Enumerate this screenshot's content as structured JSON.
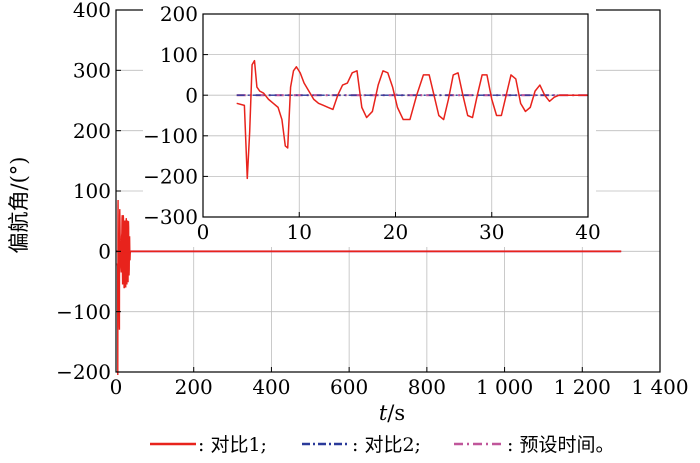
{
  "chart_data": {
    "type": "line",
    "ylabel": "偏航角/(°)",
    "xlabel_italic": "t",
    "xlabel_unit": "/s",
    "grid": true,
    "legend_position": "bottom",
    "colors": {
      "series1": "#e8231c",
      "series2": "#2a3a9a",
      "series3": "#c0569a",
      "axis": "#000000",
      "grid": "#bdbdbd"
    },
    "main": {
      "xlim": [
        0,
        1400
      ],
      "ylim": [
        -200,
        400
      ],
      "xticks": [
        0,
        200,
        400,
        600,
        800,
        1000,
        1200,
        1400
      ],
      "xtick_labels": [
        "0",
        "200",
        "400",
        "600",
        "800",
        "1 000",
        "1 200",
        "1 400"
      ],
      "yticks": [
        -200,
        -100,
        0,
        100,
        200,
        300,
        400
      ],
      "ytick_labels": [
        "−200",
        "−100",
        "0",
        "100",
        "200",
        "300",
        "400"
      ]
    },
    "inset": {
      "xlim": [
        0,
        40
      ],
      "ylim": [
        -300,
        200
      ],
      "xticks": [
        0,
        10,
        20,
        30,
        40
      ],
      "xtick_labels": [
        "0",
        "10",
        "20",
        "30",
        "40"
      ],
      "yticks": [
        -300,
        -200,
        -100,
        0,
        100,
        200
      ],
      "ytick_labels": [
        "−300",
        "−200",
        "−100",
        "0",
        "100",
        "200"
      ]
    },
    "series": [
      {
        "name": "对比1",
        "style": "solid",
        "x": [
          3.5,
          4.3,
          4.6,
          4.85,
          5.1,
          5.35,
          5.6,
          5.9,
          6.3,
          6.8,
          7.3,
          7.8,
          8.2,
          8.55,
          8.8,
          9.1,
          9.4,
          9.7,
          10.1,
          10.5,
          11.0,
          11.5,
          12.0,
          12.5,
          13.0,
          13.5,
          14.0,
          14.5,
          15.0,
          15.5,
          16.0,
          16.5,
          17.0,
          17.6,
          18.2,
          18.7,
          19.2,
          19.7,
          20.2,
          20.8,
          21.5,
          22.2,
          22.9,
          23.5,
          24.0,
          24.5,
          25.0,
          25.5,
          26.0,
          26.5,
          27.0,
          27.5,
          28.0,
          28.5,
          29.0,
          29.5,
          30.0,
          30.5,
          31.0,
          31.5,
          32.0,
          32.5,
          33.0,
          33.5,
          34.0,
          34.5,
          35.0,
          35.5,
          36.0,
          36.5,
          37.0,
          38.0,
          40.0
        ],
        "y": [
          -20,
          -25,
          -205,
          -90,
          75,
          85,
          20,
          10,
          5,
          -10,
          -20,
          -30,
          -60,
          -125,
          -130,
          20,
          60,
          70,
          55,
          30,
          10,
          -10,
          -20,
          -25,
          -30,
          -35,
          0,
          25,
          30,
          55,
          60,
          -30,
          -55,
          -40,
          25,
          60,
          55,
          20,
          -30,
          -60,
          -60,
          0,
          50,
          50,
          0,
          -50,
          -60,
          -10,
          50,
          55,
          0,
          -50,
          -55,
          0,
          50,
          50,
          -10,
          -50,
          -50,
          0,
          50,
          40,
          -20,
          -40,
          -30,
          10,
          25,
          0,
          -15,
          -5,
          0,
          0,
          0
        ]
      },
      {
        "name": "对比2",
        "style": "dashdot",
        "x": [
          3.5,
          40.0
        ],
        "y": [
          0,
          0
        ]
      },
      {
        "name": "预设时间",
        "style": "dashdot",
        "x": [
          3.5,
          20.0,
          20.3,
          20.6,
          40.0
        ],
        "y": [
          0,
          0,
          3,
          0,
          0
        ]
      }
    ],
    "legend": [
      {
        "label": ": 对比1;"
      },
      {
        "label": ": 对比2;"
      },
      {
        "label": ": 预设时间。"
      }
    ]
  }
}
